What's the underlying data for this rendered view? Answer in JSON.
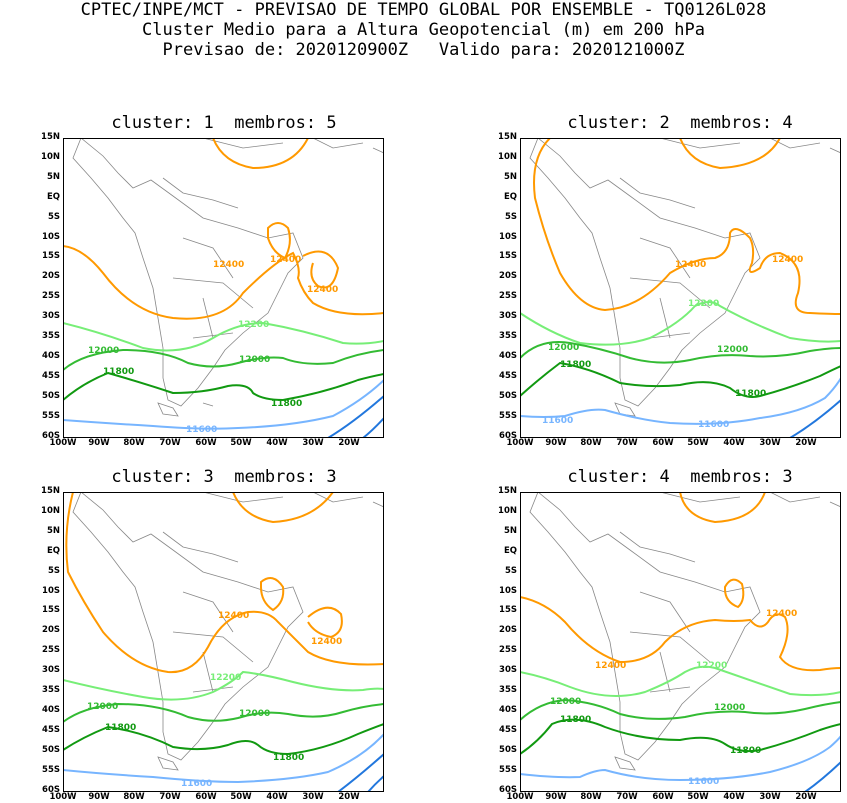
{
  "header": {
    "line1": "CPTEC/INPE/MCT - PREVISAO DE TEMPO GLOBAL POR ENSEMBLE - TQ0126L028",
    "line2": "Cluster Medio para a Altura Geopotencial (m) em 200 hPa",
    "line3": "Previsao de: 2020120900Z   Valido para: 2020121000Z"
  },
  "lat_labels": [
    "15N",
    "10N",
    "5N",
    "EQ",
    "5S",
    "10S",
    "15S",
    "20S",
    "25S",
    "30S",
    "35S",
    "40S",
    "45S",
    "50S",
    "55S",
    "60S"
  ],
  "lon_labels": [
    "100W",
    "90W",
    "80W",
    "70W",
    "60W",
    "50W",
    "40W",
    "30W",
    "20W"
  ],
  "colors": {
    "c12400": "#ff9900",
    "c12200": "#77ee77",
    "c12000": "#33bb33",
    "c11800": "#119911",
    "c11600": "#77b5ff",
    "c11400": "#2277dd",
    "coast": "#888888",
    "frame": "#000000"
  },
  "panels": [
    {
      "title": "cluster: 1  membros: 5",
      "labels": {
        "a": "12400",
        "b": "12400",
        "c": "12400",
        "d": "12200",
        "e": "12000",
        "f": "12000",
        "g": "11800",
        "h": "11800",
        "i": "11600"
      }
    },
    {
      "title": "cluster: 2  membros: 4",
      "labels": {
        "a": "12400",
        "b": "12400",
        "c": "12200",
        "d": "12000",
        "e": "12000",
        "f": "11800",
        "g": "11800",
        "h": "11600",
        "i": "11600"
      }
    },
    {
      "title": "cluster: 3  membros: 3",
      "labels": {
        "a": "12400",
        "b": "12400",
        "c": "12200",
        "d": "12000",
        "e": "12000",
        "f": "11800",
        "g": "11800",
        "h": "11600"
      }
    },
    {
      "title": "cluster: 4  membros: 3",
      "labels": {
        "a": "12400",
        "b": "12400",
        "c": "12200",
        "d": "12000",
        "e": "12000",
        "f": "11800",
        "g": "11800",
        "h": "11600"
      }
    }
  ]
}
